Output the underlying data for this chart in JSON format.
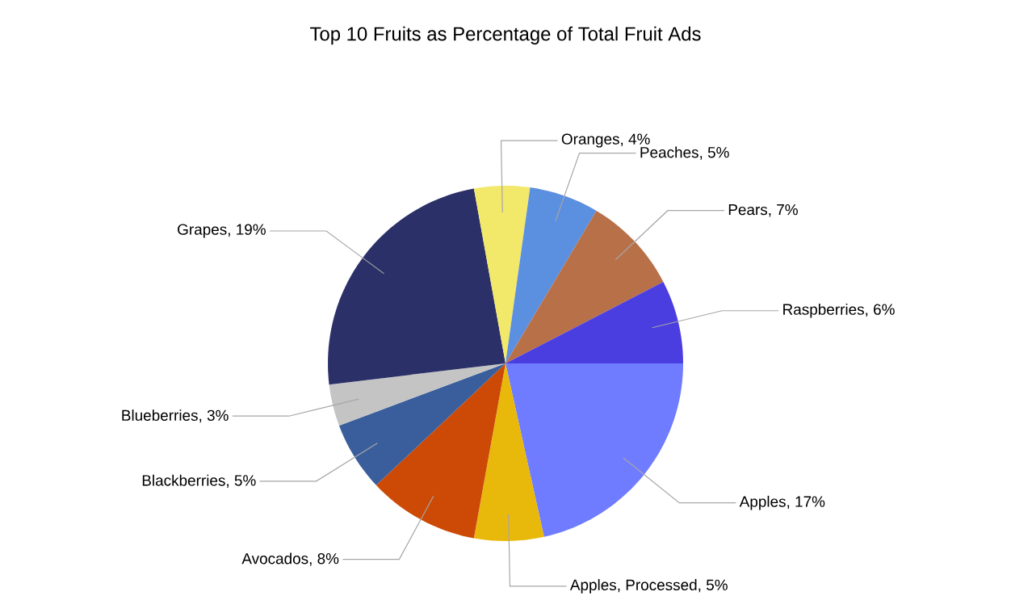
{
  "chart_data": {
    "type": "pie",
    "title": "Top 10 Fruits as Percentage of Total Fruit Ads",
    "categories": [
      "Apples, 17%",
      "Apples, Processed, 5%",
      "Avocados, 8%",
      "Blackberries, 5%",
      "Blueberries, 3%",
      "Grapes, 19%",
      "Oranges, 4%",
      "Peaches, 5%",
      "Pears, 7%",
      "Raspberries, 6%"
    ],
    "values": [
      17,
      5,
      8,
      5,
      3,
      19,
      4,
      5,
      7,
      6
    ],
    "colors": [
      "#6f7cff",
      "#e8b90a",
      "#cc4a05",
      "#3a5e9c",
      "#c4c4c4",
      "#2b3068",
      "#f2e86a",
      "#5b8fe0",
      "#b87048",
      "#4b3ee0"
    ]
  }
}
